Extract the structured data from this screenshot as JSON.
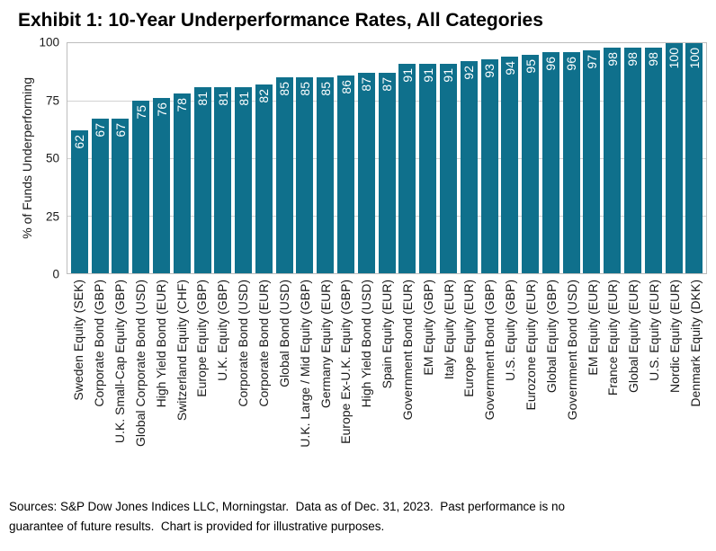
{
  "chart_data": {
    "type": "bar",
    "title": "Exhibit 1: 10-Year Underperformance Rates, All Categories",
    "ylabel": "% of Funds Underperforming",
    "xlabel": "",
    "ylim": [
      0,
      100
    ],
    "yticks": [
      0,
      25,
      50,
      75,
      100
    ],
    "grid": "horizontal",
    "legend": "none",
    "bar_color": "#0f708c",
    "value_label_color": "#ffffff",
    "categories": [
      "Sweden Equity (SEK)",
      "Corporate Bond (GBP)",
      "U.K. Small-Cap Equity (GBP)",
      "Global Corporate Bond (USD)",
      "High Yield Bond (EUR)",
      "Switzerland Equity (CHF)",
      "Europe Equity (GBP)",
      "U.K. Equity (GBP)",
      "Corporate Bond (USD)",
      "Corporate Bond (EUR)",
      "Global Bond (USD)",
      "U.K. Large / Mid Equity (GBP)",
      "Germany Equity (EUR)",
      "Europe Ex-U.K. Equity (GBP)",
      "High Yield Bond (USD)",
      "Spain Equity (EUR)",
      "Government Bond (EUR)",
      "EM Equity (GBP)",
      "Italy Equity (EUR)",
      "Europe Equity (EUR)",
      "Government Bond (GBP)",
      "U.S. Equity (GBP)",
      "Eurozone Equity (EUR)",
      "Global Equity (GBP)",
      "Government Bond (USD)",
      "EM Equity (EUR)",
      "France Equity (EUR)",
      "Global Equity (EUR)",
      "U.S. Equity (EUR)",
      "Nordic Equity (EUR)",
      "Denmark Equity (DKK)"
    ],
    "values": [
      62,
      67,
      67,
      75,
      76,
      78,
      81,
      81,
      81,
      82,
      85,
      85,
      85,
      86,
      87,
      87,
      91,
      91,
      91,
      92,
      93,
      94,
      95,
      96,
      96,
      97,
      98,
      98,
      98,
      100,
      100
    ]
  },
  "footer": {
    "lines": [
      "Sources: S&P Dow Jones Indices LLC, Morningstar.  Data as of Dec. 31, 2023.  Past performance is no",
      "guarantee of future results.  Chart is provided for illustrative purposes."
    ]
  }
}
